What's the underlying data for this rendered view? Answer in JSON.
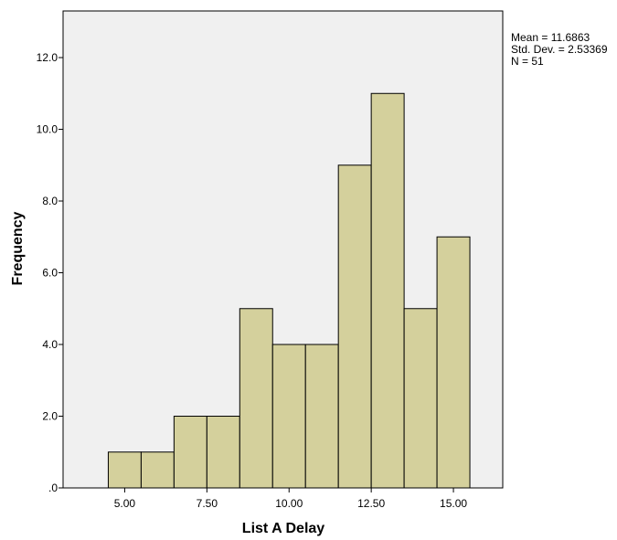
{
  "chart_data": {
    "type": "bar",
    "xlabel": "List A Delay",
    "ylabel": "Frequency",
    "bin_width": 1.0,
    "bins": [
      {
        "center": 5.0,
        "value": 1
      },
      {
        "center": 6.0,
        "value": 1
      },
      {
        "center": 7.0,
        "value": 2
      },
      {
        "center": 8.0,
        "value": 2
      },
      {
        "center": 9.0,
        "value": 5
      },
      {
        "center": 10.0,
        "value": 4
      },
      {
        "center": 11.0,
        "value": 4
      },
      {
        "center": 12.0,
        "value": 9
      },
      {
        "center": 13.0,
        "value": 11
      },
      {
        "center": 14.0,
        "value": 5
      },
      {
        "center": 15.0,
        "value": 7
      }
    ],
    "xlim": [
      3.125,
      16.5
    ],
    "ylim": [
      0,
      13.3
    ],
    "x_ticks": [
      {
        "value": 5.0,
        "label": "5.00"
      },
      {
        "value": 7.5,
        "label": "7.50"
      },
      {
        "value": 10.0,
        "label": "10.00"
      },
      {
        "value": 12.5,
        "label": "12.50"
      },
      {
        "value": 15.0,
        "label": "15.00"
      }
    ],
    "y_ticks": [
      {
        "value": 0,
        "label": ".0"
      },
      {
        "value": 2,
        "label": "2.0"
      },
      {
        "value": 4,
        "label": "4.0"
      },
      {
        "value": 6,
        "label": "6.0"
      },
      {
        "value": 8,
        "label": "8.0"
      },
      {
        "value": 10,
        "label": "10.0"
      },
      {
        "value": 12,
        "label": "12.0"
      }
    ],
    "stats": {
      "mean": "Mean = 11.6863",
      "std_dev": "Std. Dev. = 2.53369",
      "n": "N = 51"
    },
    "colors": {
      "bar_fill": "#d4d09c",
      "bar_stroke": "#000000",
      "plot_background": "#f0f0f0"
    },
    "grid": false
  }
}
